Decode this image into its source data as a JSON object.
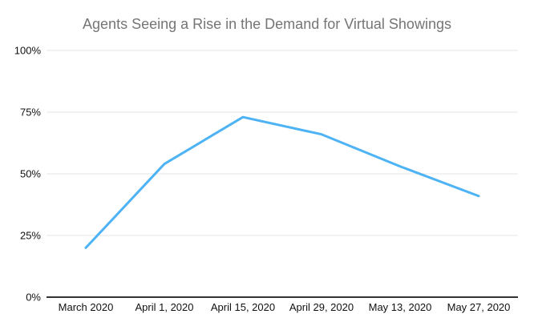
{
  "title": "Agents Seeing a Rise in the Demand for Virtual Showings",
  "colors": {
    "background": "#ffffff",
    "title_text": "#757575",
    "axis_text": "#111111",
    "gridline": "#e6e6e6",
    "axis_line": "#333333",
    "series_line": "#4db3f5"
  },
  "chart_data": {
    "type": "line",
    "title": "Agents Seeing a Rise in the Demand for Virtual Showings",
    "categories": [
      "March 2020",
      "April 1, 2020",
      "April 15, 2020",
      "April 29, 2020",
      "May 13, 2020",
      "May 27, 2020"
    ],
    "values": [
      20,
      54,
      73,
      66,
      53,
      41
    ],
    "xlabel": "",
    "ylabel": "",
    "ylim": [
      0,
      100
    ],
    "yticks": [
      0,
      25,
      50,
      75,
      100
    ],
    "ytick_labels": [
      "0%",
      "25%",
      "50%",
      "75%",
      "100%"
    ],
    "grid": true,
    "legend_position": "none"
  }
}
